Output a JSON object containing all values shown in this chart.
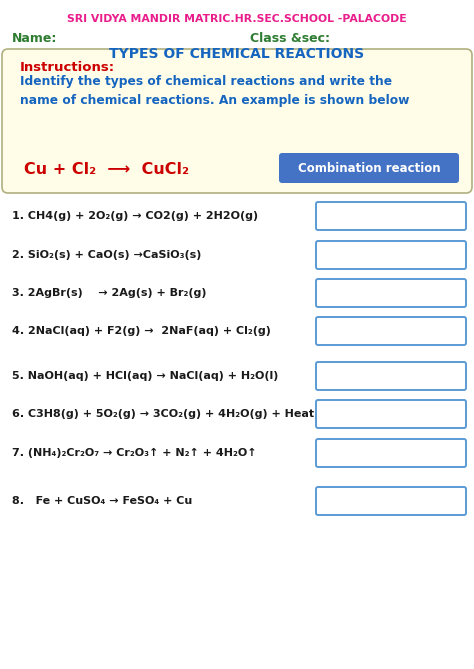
{
  "school_name": "SRI VIDYA MANDIR MATRIC.HR.SEC.SCHOOL -PALACODE",
  "school_color": "#e91e8c",
  "name_label": "Name:",
  "class_label": "Class &sec:",
  "label_color": "#2e7d32",
  "title": "TYPES OF CHEMICAL REACTIONS",
  "title_color": "#1565c0",
  "instructions_label": "Instructions:",
  "instructions_color": "#cc0000",
  "instructions_text": "Identify the types of chemical reactions and write the\nname of chemical reactions. An example is shown below",
  "instructions_text_color": "#1565c0",
  "example_reaction": "Cu + Cl₂  ⟶  CuCl₂",
  "example_color": "#cc0000",
  "example_box_text": "Combination reaction",
  "example_box_bg": "#4472c4",
  "example_box_text_color": "#ffffff",
  "box_bg": "#fffde7",
  "box_border": "#b0b080",
  "reactions": [
    "1. CH4(g) + 2O₂(g) → CO2(g) + 2H2O(g)",
    "2. SiO₂(s) + CaO(s) →CaSiO₃(s)",
    "3. 2AgBr(s)    → 2Ag(s) + Br₂(g)",
    "4. 2NaCl(aq) + F2(g) →  2NaF(aq) + Cl₂(g)",
    "5. NaOH(aq) + HCl(aq) → NaCl(aq) + H₂O(l)",
    "6. C3H8(g) + 5O₂(g) → 3CO₂(g) + 4H₂O(g) + Heat",
    "7. (NH₄)₂Cr₂O₇ → Cr₂O₃↑ + N₂↑ + 4H₂O↑",
    "8.   Fe + CuSO₄ → FeSO₄ + Cu"
  ],
  "reaction_color": "#1a1a1a",
  "answer_box_color": "#5b9bd5",
  "bg_color": "#ffffff"
}
